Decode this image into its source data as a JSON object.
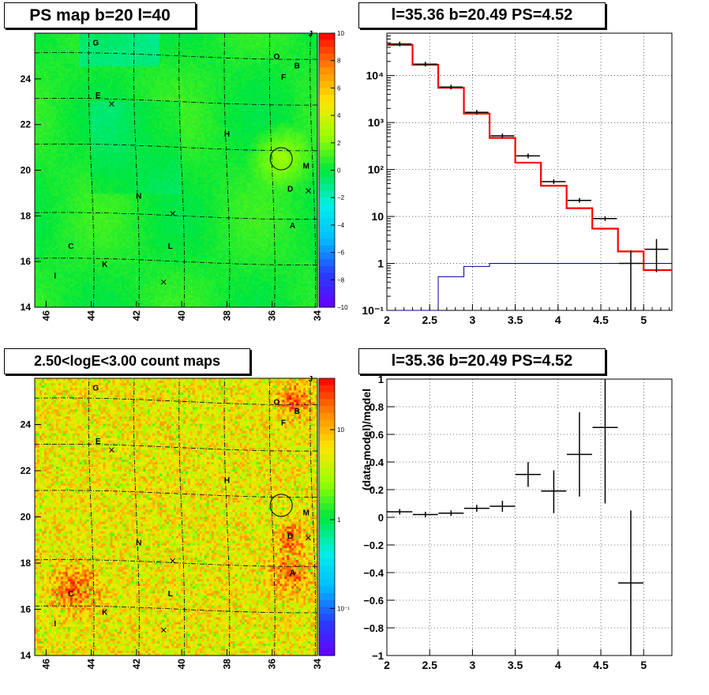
{
  "panels": {
    "ps_map": {
      "title": "PS map b=20 l=40",
      "colorbar": {
        "ticks": [
          "10",
          "8",
          "6",
          "4",
          "2",
          "0",
          "−2",
          "−4",
          "−6",
          "−8",
          "−10"
        ]
      }
    },
    "count_map": {
      "title": "2.50<logE<3.00 count maps",
      "colorbar": {
        "ticks": [
          "10",
          "1",
          "10⁻¹"
        ]
      }
    },
    "spectrum": {
      "title": "l=35.36 b=20.49 PS=4.52"
    },
    "residual": {
      "title": "l=35.36 b=20.49 PS=4.52"
    }
  },
  "map_axes": {
    "x_ticks": [
      "46",
      "44",
      "42",
      "40",
      "38",
      "36",
      "34"
    ],
    "y_ticks": [
      "24",
      "22",
      "20",
      "18",
      "16",
      "14"
    ]
  },
  "sources": [
    {
      "label": "G"
    },
    {
      "label": "O"
    },
    {
      "label": "J"
    },
    {
      "label": "B"
    },
    {
      "label": "F"
    },
    {
      "label": "E"
    },
    {
      "label": "H"
    },
    {
      "label": "M"
    },
    {
      "label": "N"
    },
    {
      "label": "D"
    },
    {
      "label": "A"
    },
    {
      "label": "C"
    },
    {
      "label": "L"
    },
    {
      "label": "K"
    },
    {
      "label": "I"
    }
  ],
  "chart_data": [
    {
      "type": "heatmap",
      "title": "PS map b=20 l=40",
      "xlabel": "",
      "ylabel": "",
      "xlim": [
        46.5,
        34
      ],
      "ylim": [
        14,
        26
      ],
      "zlim": [
        -10,
        10
      ],
      "colorscale": "rainbow",
      "sources": [
        {
          "label": "G",
          "l": 43.8,
          "b": 25.6
        },
        {
          "label": "O",
          "l": 35.8,
          "b": 25.0
        },
        {
          "label": "J",
          "l": 34.3,
          "b": 26.0
        },
        {
          "label": "B",
          "l": 34.9,
          "b": 24.6
        },
        {
          "label": "F",
          "l": 35.5,
          "b": 24.1
        },
        {
          "label": "E",
          "l": 43.7,
          "b": 23.3
        },
        {
          "label": "H",
          "l": 38.0,
          "b": 21.6
        },
        {
          "label": "M",
          "l": 34.5,
          "b": 20.2
        },
        {
          "label": "N",
          "l": 41.9,
          "b": 18.9
        },
        {
          "label": "D",
          "l": 35.2,
          "b": 19.2
        },
        {
          "label": "A",
          "l": 35.1,
          "b": 17.6
        },
        {
          "label": "C",
          "l": 44.9,
          "b": 16.7
        },
        {
          "label": "L",
          "l": 40.5,
          "b": 16.7
        },
        {
          "label": "K",
          "l": 43.4,
          "b": 15.9
        },
        {
          "label": "I",
          "l": 45.6,
          "b": 15.4
        }
      ],
      "markers_x": [
        {
          "l": 43.1,
          "b": 22.9
        },
        {
          "l": 34.4,
          "b": 19.1
        },
        {
          "l": 40.4,
          "b": 18.1
        },
        {
          "l": 40.8,
          "b": 15.1
        }
      ],
      "circle": {
        "l": 35.6,
        "b": 20.5
      }
    },
    {
      "type": "heatmap",
      "title": "2.50<logE<3.00 count maps",
      "xlim": [
        46.5,
        34
      ],
      "ylim": [
        14,
        26
      ],
      "zscale": "log",
      "zticks": [
        "10",
        "1",
        "10⁻¹"
      ],
      "colorscale": "rainbow"
    },
    {
      "type": "line",
      "title": "l=35.36 b=20.49 PS=4.52",
      "xlim": [
        2,
        5.33
      ],
      "ylim": [
        0.1,
        80000
      ],
      "yscale": "log",
      "x_ticks": [
        2,
        2.5,
        3,
        3.5,
        4,
        4.5,
        5
      ],
      "bin_edges": [
        2.0,
        2.3,
        2.6,
        2.9,
        3.2,
        3.5,
        3.8,
        4.1,
        4.4,
        4.7,
        5.0,
        5.33
      ],
      "series": [
        {
          "values": [
            45000,
            17000,
            5500,
            1550,
            470,
            140,
            45,
            15,
            5.5,
            1.8,
            0.72
          ],
          "color": "#ff0000"
        },
        {
          "values": [
            0.1,
            0.1,
            0.52,
            0.86,
            1.0,
            1.0,
            1.0,
            1.0,
            1.0,
            1.0,
            1.0
          ],
          "color": "#000099"
        }
      ],
      "data_points": [
        {
          "x": 2.15,
          "y": 47000
        },
        {
          "x": 2.45,
          "y": 17500
        },
        {
          "x": 2.75,
          "y": 5700
        },
        {
          "x": 3.05,
          "y": 1650
        },
        {
          "x": 3.35,
          "y": 520
        },
        {
          "x": 3.65,
          "y": 195
        },
        {
          "x": 3.95,
          "y": 55
        },
        {
          "x": 4.25,
          "y": 22
        },
        {
          "x": 4.55,
          "y": 9
        },
        {
          "x": 4.85,
          "y": 1.0,
          "ylo": 0.1,
          "yhi": 1.9
        },
        {
          "x": 5.15,
          "y": 2.0,
          "ylo": 0.65,
          "yhi": 3.3
        }
      ]
    },
    {
      "type": "scatter",
      "title": "l=35.36 b=20.49 PS=4.52",
      "xlabel": "",
      "ylabel": "(data-model)/model",
      "xlim": [
        2,
        5.33
      ],
      "ylim": [
        -1,
        1
      ],
      "x_ticks": [
        2,
        2.5,
        3,
        3.5,
        4,
        4.5,
        5
      ],
      "y_ticks": [
        -1,
        -0.8,
        -0.6,
        -0.4,
        -0.2,
        0,
        0.2,
        0.4,
        0.6,
        0.8,
        1
      ],
      "points": [
        {
          "x": 2.15,
          "y": 0.04,
          "ylo": 0.02,
          "yhi": 0.06
        },
        {
          "x": 2.45,
          "y": 0.02,
          "ylo": 0.0,
          "yhi": 0.04
        },
        {
          "x": 2.75,
          "y": 0.03,
          "ylo": 0.01,
          "yhi": 0.05
        },
        {
          "x": 3.05,
          "y": 0.065,
          "ylo": 0.04,
          "yhi": 0.09
        },
        {
          "x": 3.35,
          "y": 0.08,
          "ylo": 0.04,
          "yhi": 0.12
        },
        {
          "x": 3.65,
          "y": 0.31,
          "ylo": 0.22,
          "yhi": 0.4
        },
        {
          "x": 3.95,
          "y": 0.19,
          "ylo": 0.03,
          "yhi": 0.34
        },
        {
          "x": 4.25,
          "y": 0.455,
          "ylo": 0.15,
          "yhi": 0.76
        },
        {
          "x": 4.55,
          "y": 0.65,
          "ylo": 0.1,
          "yhi": 1.0
        },
        {
          "x": 4.85,
          "y": -0.475,
          "ylo": -1.0,
          "yhi": 0.05
        }
      ]
    }
  ]
}
